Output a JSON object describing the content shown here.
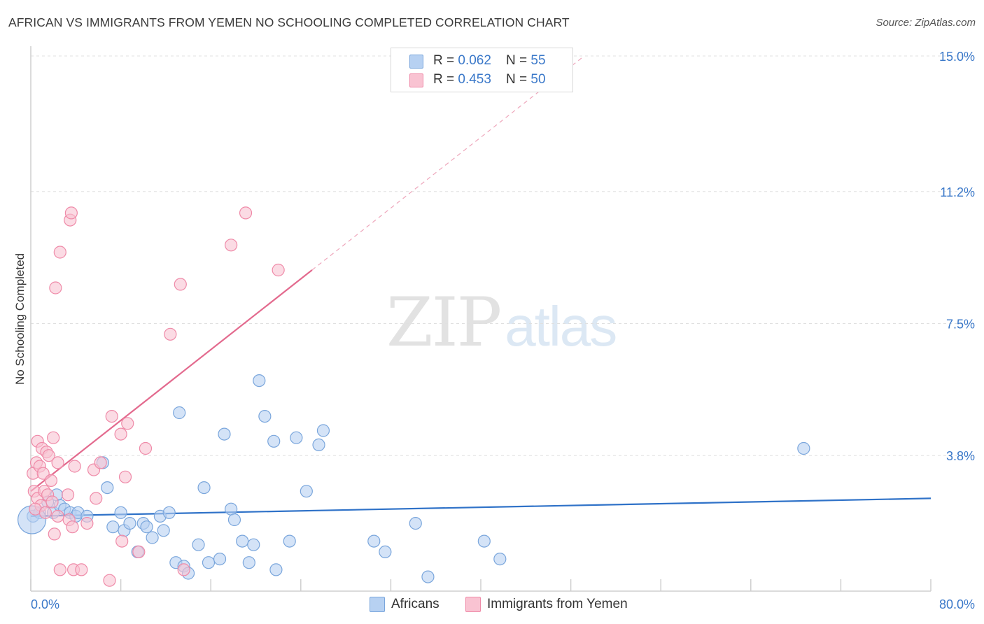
{
  "title": "AFRICAN VS IMMIGRANTS FROM YEMEN NO SCHOOLING COMPLETED CORRELATION CHART",
  "source": "Source: ZipAtlas.com",
  "watermark": {
    "part1": "ZIP",
    "part2": "atlas"
  },
  "legend": [
    {
      "r_label": "R = ",
      "r_value": "0.062",
      "n_label": "N = ",
      "n_value": "55"
    },
    {
      "r_label": "R = ",
      "r_value": "0.453",
      "n_label": "N = ",
      "n_value": "50"
    }
  ],
  "colors": {
    "africans_fill": "#b7d1f2",
    "africans_stroke": "#7aa6dc",
    "africans_line": "#2f72c8",
    "yemen_fill": "#f9c3d2",
    "yemen_stroke": "#ef8aa8",
    "yemen_line": "#e36a8e",
    "axis_label": "#3a78c9",
    "grid": "#e0e0e0"
  },
  "chart_data": {
    "type": "scatter",
    "title": "AFRICAN VS IMMIGRANTS FROM YEMEN NO SCHOOLING COMPLETED CORRELATION CHART",
    "xlabel": "",
    "ylabel": "No Schooling Completed",
    "xlim": [
      0,
      80
    ],
    "ylim": [
      0,
      15.0
    ],
    "x_tick_labels": [
      "0.0%",
      "80.0%"
    ],
    "y_ticks": [
      3.8,
      7.5,
      11.2,
      15.0
    ],
    "y_tick_labels": [
      "3.8%",
      "7.5%",
      "11.2%",
      "15.0%"
    ],
    "grid": true,
    "legend_placement": "top-center",
    "series": [
      {
        "name": "Africans",
        "r": 0.062,
        "n": 55,
        "trend": {
          "x": [
            0,
            80
          ],
          "y": [
            2.1,
            2.6
          ]
        },
        "points": [
          [
            0.2,
            2.1
          ],
          [
            0.8,
            2.2
          ],
          [
            1.5,
            2.5
          ],
          [
            2.0,
            2.2
          ],
          [
            2.3,
            2.7
          ],
          [
            2.6,
            2.4
          ],
          [
            3.0,
            2.3
          ],
          [
            3.5,
            2.2
          ],
          [
            4.0,
            2.1
          ],
          [
            4.2,
            2.2
          ],
          [
            5.0,
            2.1
          ],
          [
            6.4,
            3.6
          ],
          [
            6.8,
            2.9
          ],
          [
            7.3,
            1.8
          ],
          [
            8.0,
            2.2
          ],
          [
            8.3,
            1.7
          ],
          [
            8.8,
            1.9
          ],
          [
            9.5,
            1.1
          ],
          [
            10.0,
            1.9
          ],
          [
            10.3,
            1.8
          ],
          [
            10.8,
            1.5
          ],
          [
            11.5,
            2.1
          ],
          [
            11.8,
            1.7
          ],
          [
            12.3,
            2.2
          ],
          [
            12.9,
            0.8
          ],
          [
            13.2,
            5.0
          ],
          [
            13.6,
            0.7
          ],
          [
            14.0,
            0.5
          ],
          [
            14.9,
            1.3
          ],
          [
            15.4,
            2.9
          ],
          [
            15.8,
            0.8
          ],
          [
            16.8,
            0.9
          ],
          [
            17.2,
            4.4
          ],
          [
            17.8,
            2.3
          ],
          [
            18.1,
            2.0
          ],
          [
            18.8,
            1.4
          ],
          [
            19.4,
            0.8
          ],
          [
            19.8,
            1.3
          ],
          [
            20.3,
            5.9
          ],
          [
            20.8,
            4.9
          ],
          [
            21.8,
            0.6
          ],
          [
            21.6,
            4.2
          ],
          [
            23.0,
            1.4
          ],
          [
            23.6,
            4.3
          ],
          [
            24.5,
            2.8
          ],
          [
            25.6,
            4.1
          ],
          [
            26.0,
            4.5
          ],
          [
            30.5,
            1.4
          ],
          [
            31.5,
            1.1
          ],
          [
            34.2,
            1.9
          ],
          [
            35.3,
            0.4
          ],
          [
            40.3,
            1.4
          ],
          [
            41.7,
            0.9
          ],
          [
            68.7,
            4.0
          ],
          [
            0.1,
            2.0
          ]
        ]
      },
      {
        "name": "Immigrants from Yemen",
        "r": 0.453,
        "n": 50,
        "trend": {
          "x": [
            0,
            25
          ],
          "y": [
            2.8,
            9.0
          ]
        },
        "points": [
          [
            0.2,
            3.3
          ],
          [
            0.3,
            2.8
          ],
          [
            0.5,
            3.6
          ],
          [
            0.6,
            4.2
          ],
          [
            0.6,
            2.6
          ],
          [
            0.8,
            3.5
          ],
          [
            0.9,
            2.4
          ],
          [
            1.0,
            4.0
          ],
          [
            1.1,
            3.3
          ],
          [
            1.2,
            2.8
          ],
          [
            1.4,
            3.9
          ],
          [
            1.5,
            2.7
          ],
          [
            1.6,
            3.8
          ],
          [
            1.8,
            3.1
          ],
          [
            1.9,
            2.5
          ],
          [
            2.0,
            4.3
          ],
          [
            2.1,
            1.6
          ],
          [
            2.2,
            8.5
          ],
          [
            2.4,
            3.6
          ],
          [
            2.4,
            2.1
          ],
          [
            2.6,
            9.5
          ],
          [
            2.6,
            0.6
          ],
          [
            3.3,
            2.7
          ],
          [
            3.4,
            2.0
          ],
          [
            3.5,
            10.4
          ],
          [
            3.6,
            10.6
          ],
          [
            3.7,
            1.8
          ],
          [
            3.8,
            0.6
          ],
          [
            3.9,
            3.5
          ],
          [
            4.5,
            0.6
          ],
          [
            5.0,
            1.9
          ],
          [
            5.6,
            3.4
          ],
          [
            5.8,
            2.6
          ],
          [
            6.2,
            3.6
          ],
          [
            7.0,
            0.3
          ],
          [
            7.2,
            4.9
          ],
          [
            8.0,
            4.4
          ],
          [
            8.1,
            1.4
          ],
          [
            8.4,
            3.2
          ],
          [
            8.6,
            4.7
          ],
          [
            9.6,
            1.1
          ],
          [
            10.2,
            4.0
          ],
          [
            12.4,
            7.2
          ],
          [
            13.3,
            8.6
          ],
          [
            13.6,
            0.6
          ],
          [
            17.8,
            9.7
          ],
          [
            19.1,
            10.6
          ],
          [
            22.0,
            9.0
          ],
          [
            0.4,
            2.3
          ],
          [
            1.3,
            2.2
          ]
        ]
      }
    ]
  },
  "bottom_legend": [
    {
      "label": "Africans"
    },
    {
      "label": "Immigrants from Yemen"
    }
  ]
}
